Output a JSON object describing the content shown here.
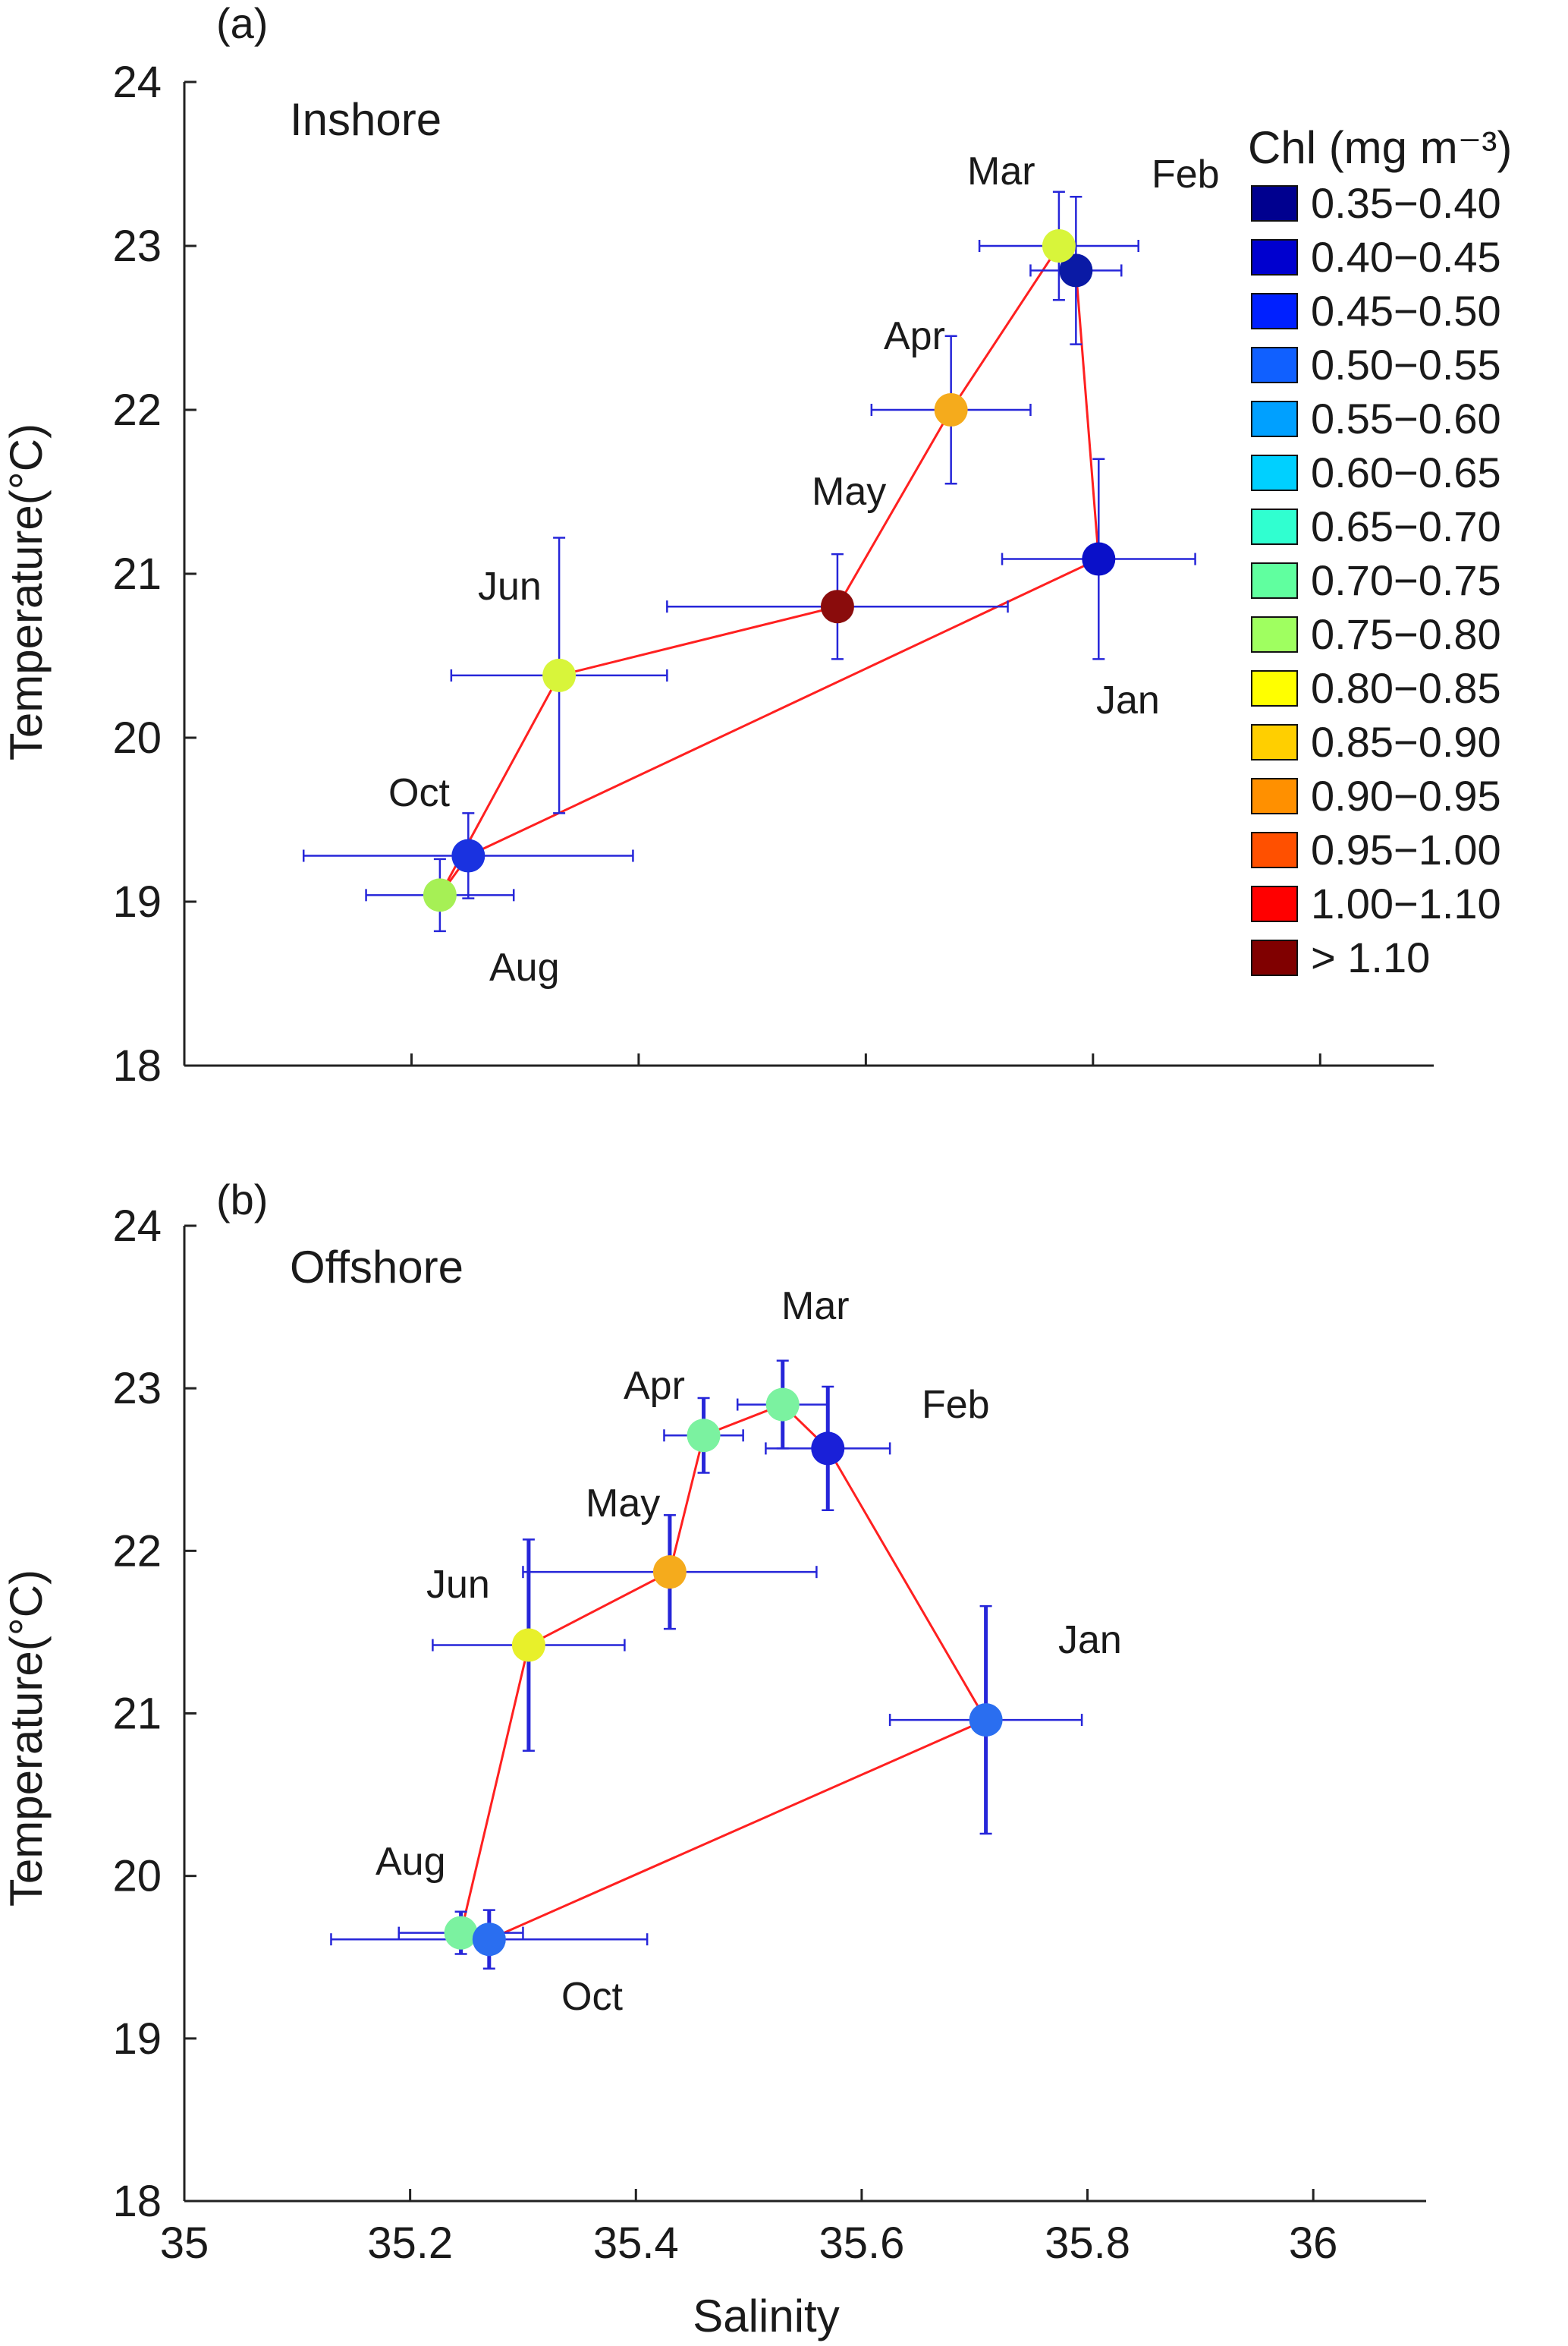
{
  "chart_data": [
    {
      "type": "scatter",
      "panel_label": "(a)",
      "region": "Inshore",
      "xlabel": "Salinity",
      "ylabel": "Temperature(°C)",
      "xlim": [
        35,
        36.1
      ],
      "ylim": [
        18,
        24
      ],
      "xticks": [
        35,
        35.2,
        35.4,
        35.6,
        35.8,
        36
      ],
      "yticks": [
        18,
        19,
        20,
        21,
        22,
        23,
        24
      ],
      "xticklabels_visible": false,
      "path_color": "#ff2020",
      "errorbar_color": "#2626d9",
      "path_order": [
        "Jan",
        "Feb",
        "Mar",
        "Apr",
        "May",
        "Jun",
        "Aug",
        "Oct",
        "Jan"
      ],
      "points": [
        {
          "month": "Jan",
          "salinity": 35.805,
          "temperature": 21.09,
          "sal_err": 0.085,
          "temp_err": 0.61,
          "chl_color": "#0a10c9"
        },
        {
          "month": "Feb",
          "salinity": 35.785,
          "temperature": 22.85,
          "sal_err": 0.04,
          "temp_err": 0.45,
          "chl_color": "#0a1aa5"
        },
        {
          "month": "Mar",
          "salinity": 35.77,
          "temperature": 23.0,
          "sal_err": 0.07,
          "temp_err": 0.33,
          "chl_color": "#d8f53a"
        },
        {
          "month": "Apr",
          "salinity": 35.675,
          "temperature": 22.0,
          "sal_err": 0.07,
          "temp_err": 0.45,
          "chl_color": "#f5ab1c"
        },
        {
          "month": "May",
          "salinity": 35.575,
          "temperature": 20.8,
          "sal_err": 0.15,
          "temp_err": 0.32,
          "chl_color": "#8a0c0c"
        },
        {
          "month": "Jun",
          "salinity": 35.33,
          "temperature": 20.38,
          "sal_err": 0.095,
          "temp_err": 0.84,
          "chl_color": "#d8f53a"
        },
        {
          "month": "Aug",
          "salinity": 35.225,
          "temperature": 19.04,
          "sal_err": 0.065,
          "temp_err": 0.22,
          "chl_color": "#a6f055"
        },
        {
          "month": "Oct",
          "salinity": 35.25,
          "temperature": 19.28,
          "sal_err": 0.145,
          "temp_err": 0.26,
          "chl_color": "#1a32e0"
        }
      ]
    },
    {
      "type": "scatter",
      "panel_label": "(b)",
      "region": "Offshore",
      "xlabel": "Salinity",
      "ylabel": "Temperature(°C)",
      "xlim": [
        35,
        36.1
      ],
      "ylim": [
        18,
        24
      ],
      "xticks": [
        35,
        35.2,
        35.4,
        35.6,
        35.8,
        36
      ],
      "xticklabels": [
        "35",
        "35.2",
        "35.4",
        "35.6",
        "35.8",
        "36"
      ],
      "yticks": [
        18,
        19,
        20,
        21,
        22,
        23,
        24
      ],
      "path_color": "#ff2020",
      "errorbar_color": "#2626d9",
      "path_order": [
        "Jan",
        "Feb",
        "Mar",
        "Apr",
        "May",
        "Jun",
        "Aug",
        "Oct",
        "Jan"
      ],
      "points": [
        {
          "month": "Jan",
          "salinity": 35.71,
          "temperature": 20.96,
          "sal_err": 0.085,
          "temp_err": 0.7,
          "chl_color": "#2a6ef0"
        },
        {
          "month": "Feb",
          "salinity": 35.57,
          "temperature": 22.63,
          "sal_err": 0.055,
          "temp_err": 0.38,
          "chl_color": "#1a20d8"
        },
        {
          "month": "Mar",
          "salinity": 35.53,
          "temperature": 22.9,
          "sal_err": 0.04,
          "temp_err": 0.27,
          "chl_color": "#7bf2a0"
        },
        {
          "month": "Apr",
          "salinity": 35.46,
          "temperature": 22.71,
          "sal_err": 0.035,
          "temp_err": 0.23,
          "chl_color": "#7bf2a0"
        },
        {
          "month": "May",
          "salinity": 35.43,
          "temperature": 21.87,
          "sal_err": 0.13,
          "temp_err": 0.35,
          "chl_color": "#f5ab1c"
        },
        {
          "month": "Jun",
          "salinity": 35.305,
          "temperature": 21.42,
          "sal_err": 0.085,
          "temp_err": 0.65,
          "chl_color": "#e8f02a"
        },
        {
          "month": "Aug",
          "salinity": 35.245,
          "temperature": 19.65,
          "sal_err": 0.055,
          "temp_err": 0.13,
          "chl_color": "#7bf2a0"
        },
        {
          "month": "Oct",
          "salinity": 35.27,
          "temperature": 19.61,
          "sal_err": 0.14,
          "temp_err": 0.18,
          "chl_color": "#2a6ef0"
        }
      ]
    }
  ],
  "legend": {
    "title": "Chl (mg m⁻³)",
    "entries": [
      {
        "label": "0.35−0.40",
        "color": "#00008f"
      },
      {
        "label": "0.40−0.45",
        "color": "#0000cf"
      },
      {
        "label": "0.45−0.50",
        "color": "#0020ff"
      },
      {
        "label": "0.50−0.55",
        "color": "#1060ff"
      },
      {
        "label": "0.55−0.60",
        "color": "#00a0ff"
      },
      {
        "label": "0.60−0.65",
        "color": "#00d0ff"
      },
      {
        "label": "0.65−0.70",
        "color": "#30ffd0"
      },
      {
        "label": "0.70−0.75",
        "color": "#60ff9f"
      },
      {
        "label": "0.75−0.80",
        "color": "#9fff60"
      },
      {
        "label": "0.80−0.85",
        "color": "#ffff00"
      },
      {
        "label": "0.85−0.90",
        "color": "#ffcf00"
      },
      {
        "label": "0.90−0.95",
        "color": "#ff9000"
      },
      {
        "label": "0.95−1.00",
        "color": "#ff5000"
      },
      {
        "label": "1.00−1.10",
        "color": "#ff0000"
      },
      {
        "label": "> 1.10",
        "color": "#800000"
      }
    ]
  }
}
